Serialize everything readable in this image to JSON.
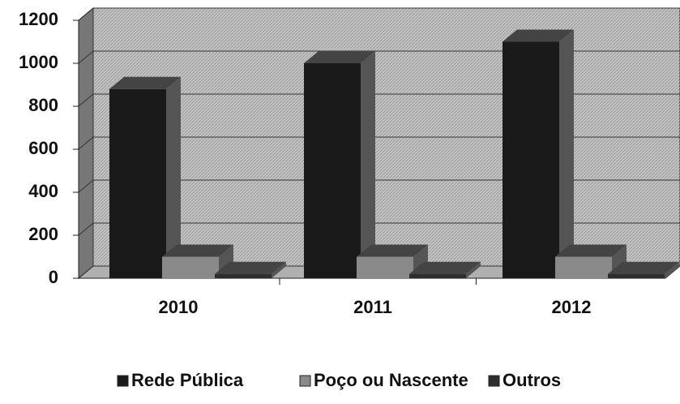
{
  "chart_data": {
    "type": "bar3d",
    "categories": [
      "2010",
      "2011",
      "2012"
    ],
    "series": [
      {
        "name": "Rede Pública",
        "color": "#1a1a1a",
        "values": [
          880,
          1000,
          1100
        ]
      },
      {
        "name": "Poço ou Nascente",
        "color": "#8a8a8a",
        "values": [
          100,
          100,
          100
        ]
      },
      {
        "name": "Outros",
        "color": "#2e2e2e",
        "values": [
          20,
          20,
          20
        ]
      }
    ],
    "ylim": [
      0,
      1200
    ],
    "yticks": [
      0,
      200,
      400,
      600,
      800,
      1000,
      1200
    ],
    "grid": true
  }
}
